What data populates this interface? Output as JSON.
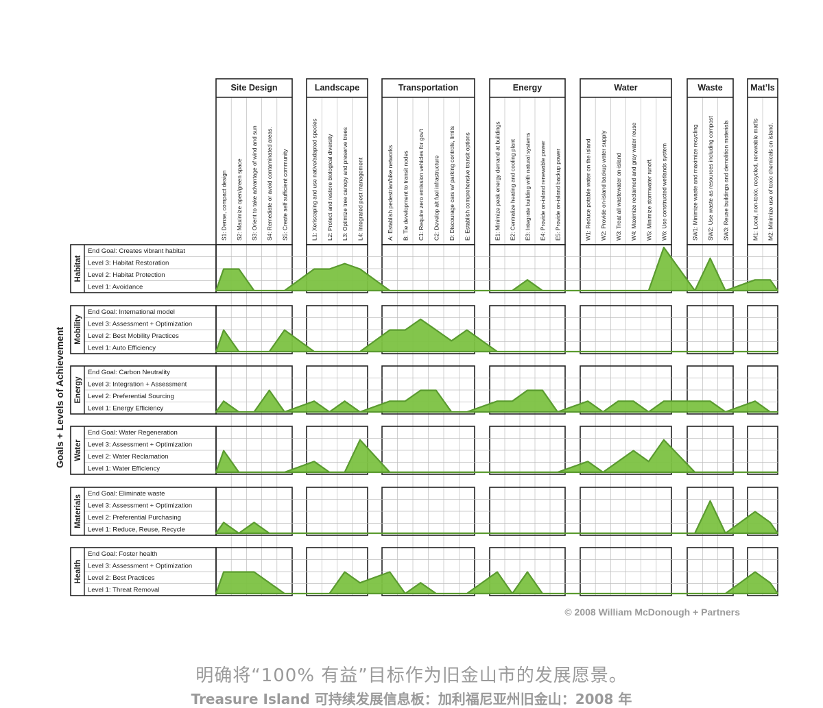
{
  "y_axis_title": "Goals + Levels of Achievement",
  "categories": [
    {
      "name": "Site Design",
      "strategies": [
        "S1: Dense, compact design",
        "S2: Maximize open/green space",
        "S3: Orient  to take advantage of wind and sun",
        "S4: Remediate or avoid  contaminated areas.",
        "S5: Create self sufficient community"
      ]
    },
    {
      "name": "Landscape",
      "strategies": [
        "L1: Xeriscaping and use native/adapted species",
        "L2: Protect and restore biological diversity",
        "L3: Optimize tree canopy and preserve trees",
        "L4: Integrated pest management"
      ]
    },
    {
      "name": "Transportation",
      "strategies": [
        "A: Establish pedestrian/bike networks",
        "B: Tie development to transit nodes",
        "C1: Require zero emission vehicles for gov't",
        "C2: Develop alt fuel infrastructure",
        "D: Discourage cars w/ parking controls, limits",
        "E: Establish comprehensive transit options"
      ]
    },
    {
      "name": "Energy",
      "strategies": [
        "E1: Minimize peak energy demand at buildings",
        "E2: Centralize heating and cooling plant",
        "E3: Integrate building with natural systems",
        "E4: Provide  on-island renewable power",
        "E5: Provide on-island backup power"
      ]
    },
    {
      "name": "Water",
      "strategies": [
        "W1: Reduce potable water on the island",
        "W2: Provide on-island backup water supply",
        "W3: Treat all wastewater on-island",
        "W4: Maximize reclaimed and gray water reuse",
        "W5: Minimize stormwater runoff.",
        "W6: Use constructed wetlands system"
      ]
    },
    {
      "name": "Waste",
      "strategies": [
        "SW1: Minimize waste and maximize recycling",
        "SW2: Use waste as resources including compost",
        "SW3: Reuse buildings and demolition materials"
      ]
    },
    {
      "name": "Mat’ls",
      "strategies": [
        "M1: Local, non-toxic, recycled, renewable mat'ls",
        "M2: Minimize use of toxic chemicals on island."
      ]
    }
  ],
  "goals": [
    {
      "name": "Habitat",
      "levels": [
        "End Goal: Creates vibrant habitat",
        "Level 3: Habitat Restoration",
        "Level 2: Habitat Protection",
        "Level 1: Avoidance"
      ]
    },
    {
      "name": "Mobility",
      "levels": [
        "End Goal: International model",
        "Level 3: Assessment + Optimization",
        "Level 2: Best Mobility Practices",
        "Level 1: Auto Efficiency"
      ]
    },
    {
      "name": "Energy",
      "levels": [
        "End Goal: Carbon Neutrality",
        "Level 3: Integration + Assessment",
        "Level 2: Preferential Sourcing",
        "Level 1: Energy Efficiency"
      ]
    },
    {
      "name": "Water",
      "levels": [
        "End Goal: Water Regeneration",
        "Level 3: Assessment + Optimization",
        "Level 2: Water Reclamation",
        "Level 1: Water Efficiency"
      ]
    },
    {
      "name": "Materials",
      "levels": [
        "End Goal: Eliminate waste",
        "Level 3:  Assessment + Optimization",
        "Level 2: Preferential Purchasing",
        "Level 1: Reduce, Reuse, Recycle"
      ]
    },
    {
      "name": "Health",
      "levels": [
        "End Goal: Foster health",
        "Level 3: Assessment + Optimization",
        "Level 2: Best Practices",
        "Level 1: Threat Removal"
      ]
    }
  ],
  "achievement_levels": {
    "Habitat": [
      2,
      2,
      0,
      0,
      0,
      2,
      2,
      2.5,
      2,
      0,
      0,
      0,
      0,
      0,
      0,
      0,
      0,
      1,
      0,
      0,
      0,
      0,
      0,
      0,
      0,
      4,
      0,
      3,
      0,
      1,
      1
    ],
    "Mobility": [
      2,
      0,
      0,
      0,
      2,
      0,
      0,
      0,
      0,
      2,
      2,
      3,
      2,
      1,
      2,
      0,
      0,
      0,
      0,
      0,
      0,
      0,
      0,
      0,
      0,
      0,
      0,
      0,
      0,
      0,
      0
    ],
    "Energy": [
      1,
      0,
      0,
      2,
      0,
      1,
      0,
      1,
      0,
      1,
      1,
      2,
      2,
      0,
      0,
      1,
      1,
      2,
      2,
      0,
      1,
      0,
      1,
      1,
      0,
      1,
      1,
      1,
      0,
      1,
      0
    ],
    "Water": [
      2,
      0,
      0,
      0,
      0,
      1,
      0,
      0,
      3,
      0,
      0,
      0,
      0,
      0,
      0,
      0,
      0,
      0,
      0,
      0,
      1,
      0,
      1,
      2,
      1,
      3,
      0,
      0,
      0,
      0,
      0
    ],
    "Materials": [
      1,
      0,
      1,
      0,
      0,
      0,
      0,
      0,
      0,
      0,
      0,
      0,
      0,
      0,
      0,
      0,
      0,
      0,
      0,
      0,
      0,
      0,
      0,
      0,
      0,
      0,
      0,
      3,
      0,
      2,
      1
    ],
    "Health": [
      2,
      2,
      2,
      1,
      0,
      0,
      0,
      2,
      1,
      2,
      0,
      1,
      0,
      0,
      0,
      2,
      0,
      2,
      0,
      0,
      0,
      0,
      0,
      0,
      0,
      0,
      0,
      0,
      0,
      2,
      1
    ]
  },
  "colors": {
    "fill": "#7cc242",
    "stroke": "#5a9b2f",
    "grid": "#bdbdbd",
    "frame": "#222222",
    "copyright": "#9a9a9a"
  },
  "copyright": "© 2008 William McDonough + Partners",
  "caption_main": "明确将“100%  有益”目标作为旧金山市的发展愿景。",
  "caption_sub": "Treasure Island 可持续发展信息板：加利福尼亚州旧金山：2008 年"
}
